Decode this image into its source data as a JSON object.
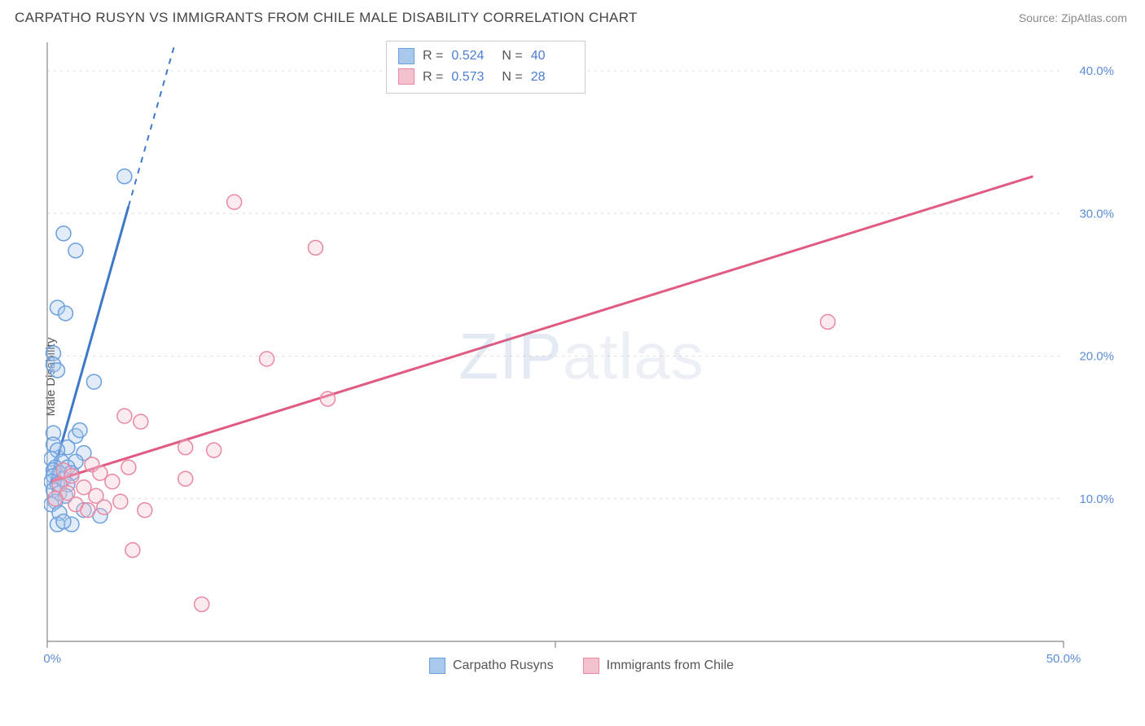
{
  "title": "CARPATHO RUSYN VS IMMIGRANTS FROM CHILE MALE DISABILITY CORRELATION CHART",
  "source": "Source: ZipAtlas.com",
  "ylabel": "Male Disability",
  "watermark": {
    "bold": "ZIP",
    "rest": "atlas"
  },
  "chart": {
    "type": "scatter",
    "background_color": "#ffffff",
    "grid_color": "#dcdcdc",
    "axis_color": "#888888",
    "tick_label_color": "#5b8dd6",
    "xlim": [
      0,
      50
    ],
    "ylim": [
      0,
      42
    ],
    "xticks": [
      0.0,
      50.0
    ],
    "xtick_labels": [
      "0.0%",
      "50.0%"
    ],
    "x_minor_tick": 25.0,
    "yticks": [
      10.0,
      20.0,
      30.0,
      40.0
    ],
    "ytick_labels": [
      "10.0%",
      "20.0%",
      "30.0%",
      "40.0%"
    ],
    "point_radius": 9,
    "series": [
      {
        "key": "carpatho",
        "label": "Carpatho Rusyns",
        "fill": "#a8c8ec",
        "stroke": "#6ca0df",
        "trend_color": "#3d78c9",
        "R": "0.524",
        "N": "40",
        "trend": {
          "x1": 0.2,
          "y1": 11.3,
          "x2": 4.0,
          "y2": 30.5,
          "dash_x2": 6.3,
          "dash_y2": 42.0
        },
        "points": [
          [
            3.8,
            32.6
          ],
          [
            0.8,
            28.6
          ],
          [
            1.4,
            27.4
          ],
          [
            0.5,
            23.4
          ],
          [
            0.9,
            23.0
          ],
          [
            0.3,
            20.2
          ],
          [
            0.3,
            19.4
          ],
          [
            0.5,
            19.0
          ],
          [
            2.3,
            18.2
          ],
          [
            0.3,
            14.6
          ],
          [
            1.4,
            14.4
          ],
          [
            1.6,
            14.8
          ],
          [
            0.3,
            13.8
          ],
          [
            1.0,
            13.6
          ],
          [
            0.5,
            13.4
          ],
          [
            1.8,
            13.2
          ],
          [
            0.2,
            12.8
          ],
          [
            0.7,
            12.6
          ],
          [
            1.4,
            12.6
          ],
          [
            0.4,
            12.2
          ],
          [
            1.0,
            12.2
          ],
          [
            0.3,
            12.0
          ],
          [
            0.6,
            11.8
          ],
          [
            1.2,
            11.8
          ],
          [
            0.3,
            11.6
          ],
          [
            0.8,
            11.4
          ],
          [
            0.2,
            11.2
          ],
          [
            0.5,
            11.0
          ],
          [
            1.0,
            11.0
          ],
          [
            0.3,
            10.6
          ],
          [
            0.6,
            10.4
          ],
          [
            0.9,
            10.2
          ],
          [
            0.4,
            9.8
          ],
          [
            0.2,
            9.6
          ],
          [
            1.8,
            9.2
          ],
          [
            0.6,
            9.0
          ],
          [
            2.6,
            8.8
          ],
          [
            0.5,
            8.2
          ],
          [
            1.2,
            8.2
          ],
          [
            0.8,
            8.4
          ]
        ]
      },
      {
        "key": "chile",
        "label": "Immigrants from Chile",
        "fill": "#f4c2ce",
        "stroke": "#e888a3",
        "trend_color": "#e15a82",
        "R": "0.573",
        "N": "28",
        "trend": {
          "x1": 0.2,
          "y1": 11.2,
          "x2": 48.5,
          "y2": 32.6,
          "dash_x2": 48.5,
          "dash_y2": 32.6
        },
        "points": [
          [
            9.2,
            30.8
          ],
          [
            13.2,
            27.6
          ],
          [
            38.4,
            22.4
          ],
          [
            10.8,
            19.8
          ],
          [
            13.8,
            17.0
          ],
          [
            3.8,
            15.8
          ],
          [
            4.6,
            15.4
          ],
          [
            6.8,
            13.6
          ],
          [
            8.2,
            13.4
          ],
          [
            2.2,
            12.4
          ],
          [
            4.0,
            12.2
          ],
          [
            0.8,
            12.0
          ],
          [
            2.6,
            11.8
          ],
          [
            1.2,
            11.6
          ],
          [
            6.8,
            11.4
          ],
          [
            3.2,
            11.2
          ],
          [
            0.6,
            11.0
          ],
          [
            1.8,
            10.8
          ],
          [
            1.0,
            10.4
          ],
          [
            2.4,
            10.2
          ],
          [
            0.4,
            10.0
          ],
          [
            3.6,
            9.8
          ],
          [
            1.4,
            9.6
          ],
          [
            2.8,
            9.4
          ],
          [
            2.0,
            9.2
          ],
          [
            4.8,
            9.2
          ],
          [
            4.2,
            6.4
          ],
          [
            7.6,
            2.6
          ]
        ]
      }
    ]
  },
  "stats_box": {
    "R_label": "R =",
    "N_label": "N ="
  },
  "bottom_legend_order": [
    "carpatho",
    "chile"
  ]
}
